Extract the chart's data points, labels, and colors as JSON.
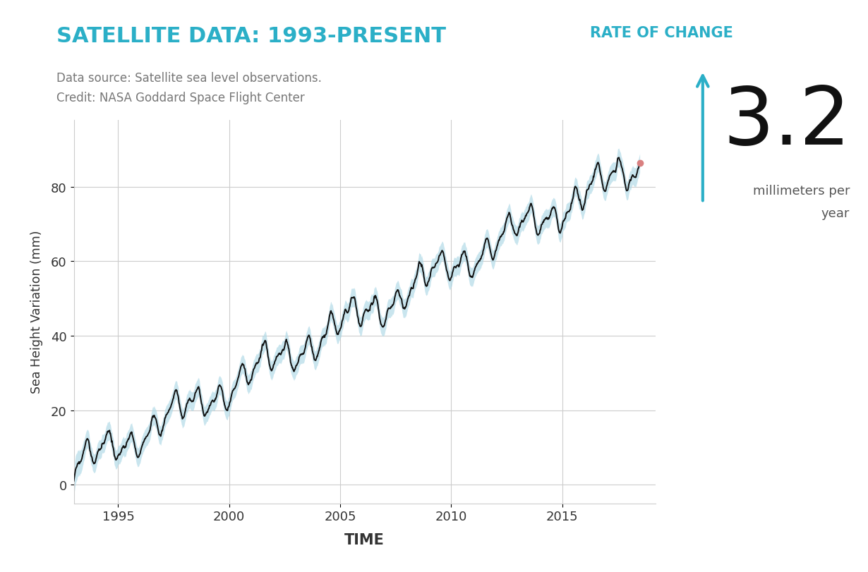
{
  "title": "SATELLITE DATA: 1993-PRESENT",
  "title_color": "#2bafc7",
  "rate_of_change_label": "RATE OF CHANGE",
  "rate_of_change_color": "#2bafc7",
  "rate_value": "3.2",
  "rate_unit_line1": "millimeters per",
  "rate_unit_line2": "year",
  "data_source_line1": "Data source: Satellite sea level observations.",
  "data_source_line2": "Credit: NASA Goddard Space Flight Center",
  "xlabel": "TIME",
  "ylabel": "Sea Height Variation (mm)",
  "xlim": [
    1993.0,
    2019.2
  ],
  "ylim": [
    -5,
    98
  ],
  "yticks": [
    0,
    20,
    40,
    60,
    80
  ],
  "xticks": [
    1995,
    2000,
    2005,
    2010,
    2015
  ],
  "bg_color": "#ffffff",
  "line_color": "#111111",
  "band_color": "#add8e6",
  "endpoint_color": "#d98080",
  "grid_color": "#cccccc",
  "arrow_color": "#2bafc7"
}
